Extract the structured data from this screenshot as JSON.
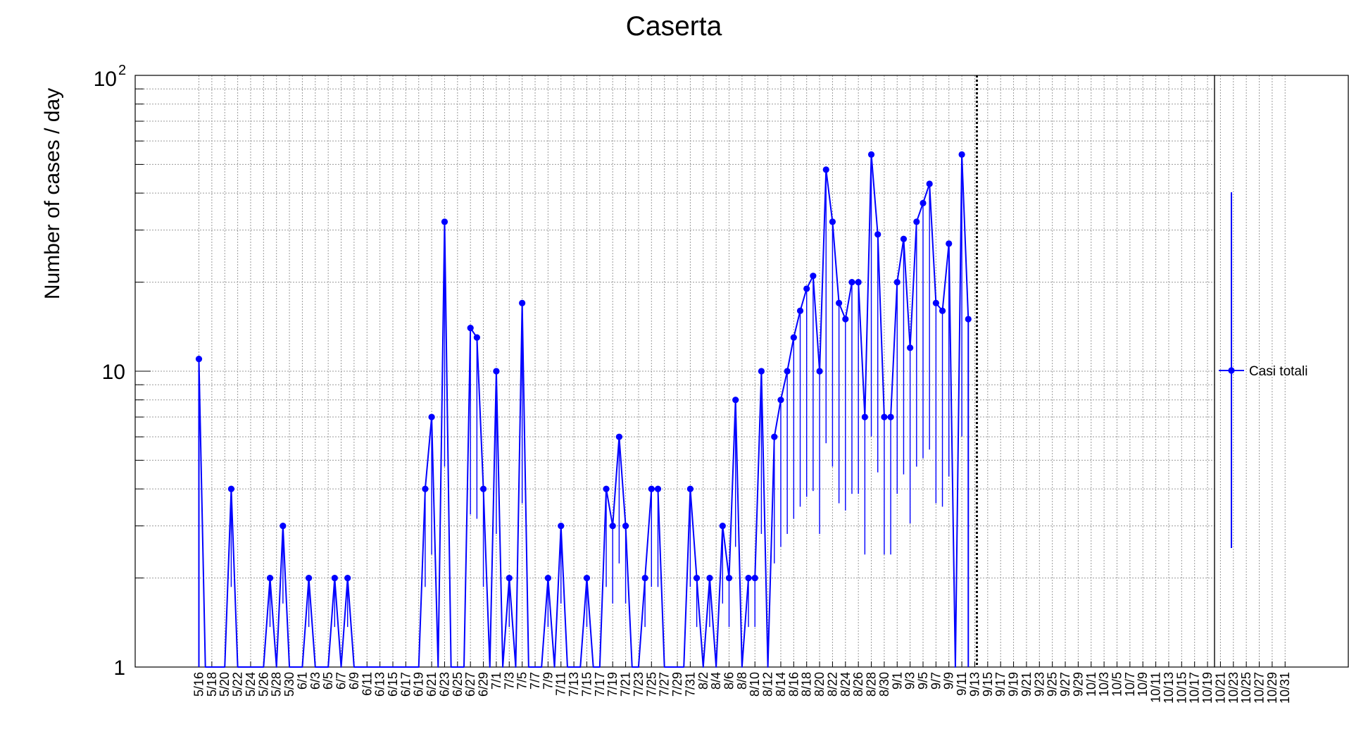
{
  "chart_data": {
    "type": "line",
    "title": "Caserta",
    "xlabel": "",
    "ylabel": "Number of cases / day",
    "yscale": "log",
    "ylim": [
      1,
      100
    ],
    "y_tick_labels": {
      "one": "1",
      "ten": "10",
      "hundred_base": "10",
      "hundred_exp": "2"
    },
    "grid": true,
    "legend_position": "right",
    "x_tick_labels": [
      "5/16",
      "5/18",
      "5/20",
      "5/22",
      "5/24",
      "5/26",
      "5/28",
      "5/30",
      "6/1",
      "6/3",
      "6/5",
      "6/7",
      "6/9",
      "6/11",
      "6/13",
      "6/15",
      "6/17",
      "6/19",
      "6/21",
      "6/23",
      "6/25",
      "6/27",
      "6/29",
      "7/1",
      "7/3",
      "7/5",
      "7/7",
      "7/9",
      "7/11",
      "7/13",
      "7/15",
      "7/17",
      "7/19",
      "7/21",
      "7/23",
      "7/25",
      "7/27",
      "7/29",
      "7/31",
      "8/2",
      "8/4",
      "8/6",
      "8/8",
      "8/10",
      "8/12",
      "8/14",
      "8/16",
      "8/18",
      "8/20",
      "8/22",
      "8/24",
      "8/26",
      "8/28",
      "8/30",
      "9/1",
      "9/3",
      "9/5",
      "9/7",
      "9/9",
      "9/11",
      "9/13",
      "9/15",
      "9/17",
      "9/19",
      "9/21",
      "9/23",
      "9/25",
      "9/27",
      "9/29",
      "10/1",
      "10/3",
      "10/5",
      "10/7",
      "10/9",
      "10/11",
      "10/13",
      "10/15",
      "10/17",
      "10/19",
      "10/21",
      "10/23",
      "10/25",
      "10/27",
      "10/29",
      "10/31"
    ],
    "series": [
      {
        "name": "Casi totali",
        "color": "#0000ff",
        "points": [
          {
            "x": "5/16",
            "y": 11
          },
          {
            "x": "5/21",
            "y": 4
          },
          {
            "x": "5/27",
            "y": 2
          },
          {
            "x": "5/29",
            "y": 3
          },
          {
            "x": "6/2",
            "y": 2
          },
          {
            "x": "6/6",
            "y": 2
          },
          {
            "x": "6/8",
            "y": 2
          },
          {
            "x": "6/20",
            "y": 4
          },
          {
            "x": "6/21",
            "y": 7
          },
          {
            "x": "6/23",
            "y": 32
          },
          {
            "x": "6/27",
            "y": 14
          },
          {
            "x": "6/28",
            "y": 13
          },
          {
            "x": "6/29",
            "y": 4
          },
          {
            "x": "7/1",
            "y": 10
          },
          {
            "x": "7/3",
            "y": 2
          },
          {
            "x": "7/5",
            "y": 17
          },
          {
            "x": "7/9",
            "y": 2
          },
          {
            "x": "7/11",
            "y": 3
          },
          {
            "x": "7/15",
            "y": 2
          },
          {
            "x": "7/18",
            "y": 4
          },
          {
            "x": "7/19",
            "y": 3
          },
          {
            "x": "7/20",
            "y": 6
          },
          {
            "x": "7/21",
            "y": 3
          },
          {
            "x": "7/24",
            "y": 2
          },
          {
            "x": "7/25",
            "y": 4
          },
          {
            "x": "7/26",
            "y": 4
          },
          {
            "x": "7/31",
            "y": 4
          },
          {
            "x": "8/1",
            "y": 2
          },
          {
            "x": "8/3",
            "y": 2
          },
          {
            "x": "8/5",
            "y": 3
          },
          {
            "x": "8/6",
            "y": 2
          },
          {
            "x": "8/7",
            "y": 8
          },
          {
            "x": "8/9",
            "y": 2
          },
          {
            "x": "8/10",
            "y": 2
          },
          {
            "x": "8/11",
            "y": 10
          },
          {
            "x": "8/13",
            "y": 6
          },
          {
            "x": "8/14",
            "y": 8
          },
          {
            "x": "8/15",
            "y": 10
          },
          {
            "x": "8/16",
            "y": 13
          },
          {
            "x": "8/17",
            "y": 16
          },
          {
            "x": "8/18",
            "y": 19
          },
          {
            "x": "8/19",
            "y": 21
          },
          {
            "x": "8/20",
            "y": 10
          },
          {
            "x": "8/21",
            "y": 48
          },
          {
            "x": "8/22",
            "y": 32
          },
          {
            "x": "8/23",
            "y": 17
          },
          {
            "x": "8/24",
            "y": 15
          },
          {
            "x": "8/25",
            "y": 20
          },
          {
            "x": "8/26",
            "y": 20
          },
          {
            "x": "8/27",
            "y": 7
          },
          {
            "x": "8/28",
            "y": 54
          },
          {
            "x": "8/29",
            "y": 29
          },
          {
            "x": "8/30",
            "y": 7
          },
          {
            "x": "8/31",
            "y": 7
          },
          {
            "x": "9/1",
            "y": 20
          },
          {
            "x": "9/2",
            "y": 28
          },
          {
            "x": "9/3",
            "y": 12
          },
          {
            "x": "9/4",
            "y": 32
          },
          {
            "x": "9/5",
            "y": 37
          },
          {
            "x": "9/6",
            "y": 43
          },
          {
            "x": "9/7",
            "y": 17
          },
          {
            "x": "9/8",
            "y": 16
          },
          {
            "x": "9/9",
            "y": 27
          },
          {
            "x": "9/11",
            "y": 54
          },
          {
            "x": "9/12",
            "y": 15
          }
        ]
      }
    ]
  }
}
